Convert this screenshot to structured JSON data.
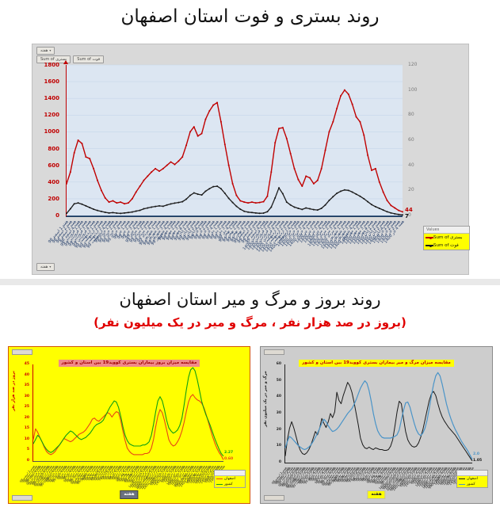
{
  "page": {
    "title_top": "روند بستری و فوت استان اصفهان",
    "title_bottom": "روند بروز و مرگ و میر استان اصفهان",
    "subtitle_bottom": "(بروز در صد هزار نفر ، مرگ و میر در یک میلیون نفر)"
  },
  "icons": {
    "dropdown": "▾"
  },
  "colors": {
    "panel_bg": "#d9d9d9",
    "plot_bg": "#dce6f2",
    "grid": "#c6d5ea",
    "hospitalized_red": "#c00000",
    "death_black": "#1a1a1a",
    "incidence_bg": "#ffff00",
    "province_orange": "#e84615",
    "country_green": "#11a011",
    "mortality_bg": "#cdcdcd",
    "country_blue": "#4a94c8",
    "subtitle_red": "#e00000",
    "legend_highlight": "#ffff00"
  },
  "top_chart": {
    "field_buttons": {
      "axis": "هفته",
      "value1": "Sum of بستری",
      "value2": "Sum of فوت"
    },
    "legend_header": "Values"
  },
  "week_labels": [
    "هفته 1 اسفند 98",
    "هفته 2 اسفند 98",
    "هفته 3 اسفند 98",
    "هفته 4 اسفند 98",
    "هفته 1 فروردین 99",
    "هفته 2 فروردین 99",
    "هفته 3 فروردین 99",
    "هفته 4 فروردین 99",
    "هفته 1 اردیبهشت 99",
    "هفته 2 اردیبهشت 99",
    "هفته 3 اردیبهشت 99",
    "هفته 4 اردیبهشت 99",
    "هفته 1 خرداد 99",
    "هفته 2 خرداد 99",
    "هفته 3 خرداد 99",
    "هفته 4 خرداد 99",
    "هفته 1 تیر 99",
    "هفته 2 تیر 99",
    "هفته 3 تیر 99",
    "هفته 4 تیر 99",
    "هفته 1 مرداد 99",
    "هفته 2 مرداد 99",
    "هفته 3 مرداد 99",
    "هفته 4 مرداد 99",
    "هفته 1 شهریور 99",
    "هفته 2 شهریور 99",
    "هفته 3 شهریور 99",
    "هفته 4 شهریور 99",
    "هفته 1 مهر 99",
    "هفته 2 مهر 99",
    "هفته 3 مهر 99",
    "هفته 4 مهر 99",
    "هفته 1 آبان 99",
    "هفته 2 آبان 99",
    "هفته 3 آبان 99",
    "هفته 4 آبان 99",
    "هفته 1 آذر 99",
    "هفته 2 آذر 99",
    "هفته 3 آذر 99",
    "هفته 4 آذر 99",
    "هفته 1 دی 99",
    "هفته 2 دی 99",
    "هفته 3 دی 99",
    "هفته 4 دی 99",
    "هفته 1 بهمن 99",
    "هفته 2 بهمن 99",
    "هفته 3 بهمن 99",
    "هفته 4 بهمن 99",
    "هفته 1 اسفند 99",
    "هفته 2 اسفند 99",
    "هفته 3 اسفند 99",
    "هفته 4 اسفند 99",
    "هفته 1 فروردین 1400",
    "هفته 2 فروردین 1400",
    "هفته 3 فروردین 1400",
    "هفته 4 فروردین 1400",
    "هفته 1 اردیبهشت 1400",
    "هفته 2 اردیبهشت 1400",
    "هفته 3 اردیبهشت 1400",
    "هفته 4 اردیبهشت 1400",
    "هفته 1 خرداد 1400",
    "هفته 2 خرداد 1400",
    "هفته 3 خرداد 1400",
    "هفته 4 خرداد 1400",
    "هفته 1 تیر 1400",
    "هفته 2 تیر 1400",
    "هفته 3 تیر 1400",
    "هفته 4 تیر 1400",
    "هفته 1 مرداد 1400",
    "هفته 2 مرداد 1400",
    "هفته 3 مرداد 1400",
    "هفته 4 مرداد 1400",
    "هفته 1 شهریور 1400",
    "هفته 2 شهریور 1400",
    "هفته 3 شهریور 1400",
    "هفته 4 شهریور 1400",
    "هفته 1 مهر 1400",
    "هفته 2 مهر 1400",
    "هفته 3 مهر 1400",
    "هفته 4 مهر 1400",
    "هفته 1 آبان 1400",
    "هفته 2 آبان 1400",
    "هفته 3 آبان 1400",
    "هفته 4 آبان 1400",
    "هفته 1 آذر 1400",
    "هفته 2 آذر 1400",
    "هفته 3 آذر 1400",
    "هفته 4 آذر 1400"
  ],
  "chart_data": [
    {
      "type": "line",
      "title": "روند بستری و فوت استان اصفهان",
      "xlabel": "هفته",
      "ylabel": "",
      "ylim": [
        0,
        1800
      ],
      "ymax": 1800,
      "grid_color": "#c6d5ea",
      "legend_position": "right",
      "yticks": [
        "1800",
        "1600",
        "1400",
        "1200",
        "1000",
        "800",
        "600",
        "400",
        "200",
        "0"
      ],
      "yticks_right": [
        "120",
        "100",
        "80",
        "60",
        "40",
        "20",
        "0"
      ],
      "series": [
        {
          "name": "Sum of بستری",
          "color": "#c00000",
          "stroke_width": 1.4,
          "markers": true,
          "end_label": "44",
          "values": [
            380,
            520,
            750,
            900,
            860,
            700,
            680,
            560,
            420,
            300,
            210,
            160,
            175,
            150,
            160,
            140,
            150,
            200,
            280,
            350,
            420,
            470,
            520,
            560,
            530,
            560,
            600,
            640,
            610,
            650,
            700,
            840,
            1000,
            1060,
            950,
            980,
            1150,
            1250,
            1320,
            1350,
            1120,
            850,
            600,
            380,
            240,
            175,
            160,
            150,
            160,
            150,
            155,
            165,
            230,
            520,
            870,
            1040,
            1050,
            920,
            740,
            560,
            430,
            350,
            470,
            450,
            380,
            420,
            560,
            780,
            1000,
            1120,
            1280,
            1430,
            1500,
            1450,
            1330,
            1180,
            1120,
            960,
            720,
            540,
            560,
            400,
            280,
            180,
            120,
            90,
            60,
            44
          ]
        },
        {
          "name": "Sum of فوت",
          "color": "#1a1a1a",
          "stroke_width": 1.3,
          "markers": true,
          "end_label": "7",
          "values": [
            25,
            80,
            140,
            150,
            135,
            115,
            95,
            75,
            60,
            48,
            38,
            30,
            34,
            28,
            25,
            30,
            35,
            42,
            52,
            62,
            80,
            90,
            100,
            108,
            115,
            110,
            125,
            138,
            148,
            155,
            165,
            195,
            240,
            270,
            255,
            245,
            290,
            320,
            345,
            350,
            320,
            265,
            205,
            155,
            110,
            75,
            50,
            40,
            35,
            30,
            26,
            28,
            45,
            100,
            210,
            330,
            260,
            160,
            125,
            100,
            85,
            72,
            90,
            80,
            70,
            65,
            85,
            125,
            180,
            225,
            265,
            290,
            305,
            300,
            280,
            255,
            230,
            200,
            165,
            130,
            105,
            85,
            65,
            45,
            30,
            20,
            12,
            7
          ]
        }
      ]
    },
    {
      "type": "line",
      "title": "مقایسه میزان بروز بیماران بستری کووید19 بین استان و کشور",
      "xlabel": "هفته",
      "ylabel": "بروز در صد هزار نفر",
      "ylim": [
        0,
        45
      ],
      "ymax": 45,
      "grid_color": null,
      "legend_position": "bottom-right",
      "yticks": [
        "45",
        "40",
        "35",
        "30",
        "25",
        "20",
        "15",
        "10",
        "5",
        "0"
      ],
      "series": [
        {
          "name": "اصفهان",
          "color": "#e84615",
          "stroke_width": 1.1,
          "markers": false,
          "end_label": "0.60",
          "values": [
            10,
            15,
            13.5,
            11,
            9,
            6.5,
            4.5,
            3.5,
            3,
            3.5,
            4.5,
            6,
            7.5,
            9,
            10.5,
            10,
            9.5,
            9,
            9.5,
            10.5,
            11.5,
            12.5,
            13,
            13.5,
            14.5,
            16,
            17.5,
            19.5,
            20,
            19,
            18.5,
            19.5,
            20.5,
            21.5,
            22.5,
            22,
            20.5,
            22,
            23,
            22.5,
            19,
            14,
            9.5,
            6,
            4.5,
            3.5,
            3,
            3,
            3,
            3,
            3,
            3.5,
            3.5,
            4,
            6,
            10,
            16,
            21,
            24,
            22.5,
            19,
            14.5,
            10,
            8,
            7,
            7.5,
            9,
            11,
            14,
            18,
            23,
            27.5,
            30,
            31,
            29.5,
            28.5,
            28,
            27,
            25,
            22,
            18.5,
            15,
            11.5,
            8.5,
            6,
            4,
            2.5,
            0.6
          ]
        },
        {
          "name": "کشور",
          "color": "#11a011",
          "stroke_width": 1.1,
          "markers": false,
          "end_label": "2.27",
          "values": [
            8,
            10,
            12,
            11,
            9,
            7,
            5.5,
            4.5,
            4,
            4.5,
            5.5,
            6.5,
            7.5,
            9,
            10.5,
            12,
            13,
            14,
            13.5,
            12.5,
            11.5,
            10.5,
            10,
            10.5,
            11,
            12,
            13,
            14.5,
            16,
            17,
            17.5,
            18,
            19,
            21,
            23,
            25,
            26.5,
            28,
            27.5,
            25,
            21,
            16,
            12,
            9.5,
            8,
            7.5,
            7,
            7,
            7,
            7,
            7.5,
            7.5,
            8,
            9,
            12,
            17,
            23,
            28,
            30,
            28,
            24,
            19,
            15.5,
            14,
            13,
            13.5,
            14.5,
            16.5,
            20,
            26,
            33,
            39,
            42.5,
            43.5,
            42,
            38,
            33,
            28,
            24.5,
            21.5,
            19,
            16.5,
            13.5,
            10.5,
            8,
            5.5,
            3.5,
            2.27
          ]
        }
      ]
    },
    {
      "type": "line",
      "title": "مقایسه میزان مرگ و میر بیماران بستری کووید19 بین استان و کشور",
      "xlabel": "هفته",
      "ylabel": "مرگ و میر در یک میلیون نفر",
      "ylim": [
        0,
        60
      ],
      "ymax": 60,
      "grid_color": null,
      "legend_position": "bottom-right",
      "yticks": [
        "60",
        "50",
        "40",
        "30",
        "20",
        "10",
        "0"
      ],
      "series": [
        {
          "name": "اصفهان",
          "color": "#1a1a1a",
          "stroke_width": 1,
          "markers": false,
          "end_label": "1.05",
          "values": [
            4,
            14,
            21,
            25,
            21,
            16,
            11,
            7.5,
            5.5,
            5,
            6,
            8,
            11,
            15,
            19,
            17,
            21,
            27,
            24,
            21.5,
            25,
            30,
            27.5,
            31,
            43,
            38,
            36,
            41,
            45,
            49,
            47,
            43,
            37,
            30,
            23,
            15,
            11,
            9,
            8.5,
            9.5,
            8.5,
            8,
            9,
            8.5,
            8,
            8,
            7.5,
            7.5,
            8,
            10,
            14,
            22,
            31,
            37.5,
            36,
            27,
            19,
            14,
            11.5,
            10,
            9.5,
            10,
            12,
            15.5,
            20,
            26,
            32,
            38,
            42,
            43.5,
            41,
            36,
            31.5,
            28,
            25.5,
            23.5,
            21.5,
            20,
            18.5,
            17,
            15,
            13,
            11,
            9,
            7,
            5,
            3,
            1.05
          ]
        },
        {
          "name": "کشور",
          "color": "#4a94c8",
          "stroke_width": 1.2,
          "markers": false,
          "end_label": "2.0",
          "values": [
            9,
            13,
            16,
            15,
            13.5,
            12,
            10.5,
            9.5,
            8.5,
            8,
            8.5,
            9.5,
            11,
            13,
            15.5,
            18,
            21,
            24,
            26.5,
            25,
            22.5,
            20.5,
            19,
            19.5,
            20.5,
            22,
            24,
            26,
            28,
            30,
            31.5,
            33,
            35.5,
            38.5,
            42,
            45.5,
            48,
            50,
            48.5,
            44,
            37.5,
            30,
            24,
            19.5,
            17,
            15.5,
            15,
            15,
            15,
            15,
            15.5,
            16,
            17,
            20,
            26,
            32,
            36.5,
            37,
            34,
            29,
            24,
            20,
            17.5,
            16.5,
            18,
            21,
            26,
            33,
            41,
            48,
            53,
            55,
            53,
            48,
            42,
            36,
            31,
            27,
            23.5,
            20.5,
            18,
            15.5,
            13,
            11,
            9,
            7,
            4.5,
            2
          ]
        }
      ]
    }
  ]
}
